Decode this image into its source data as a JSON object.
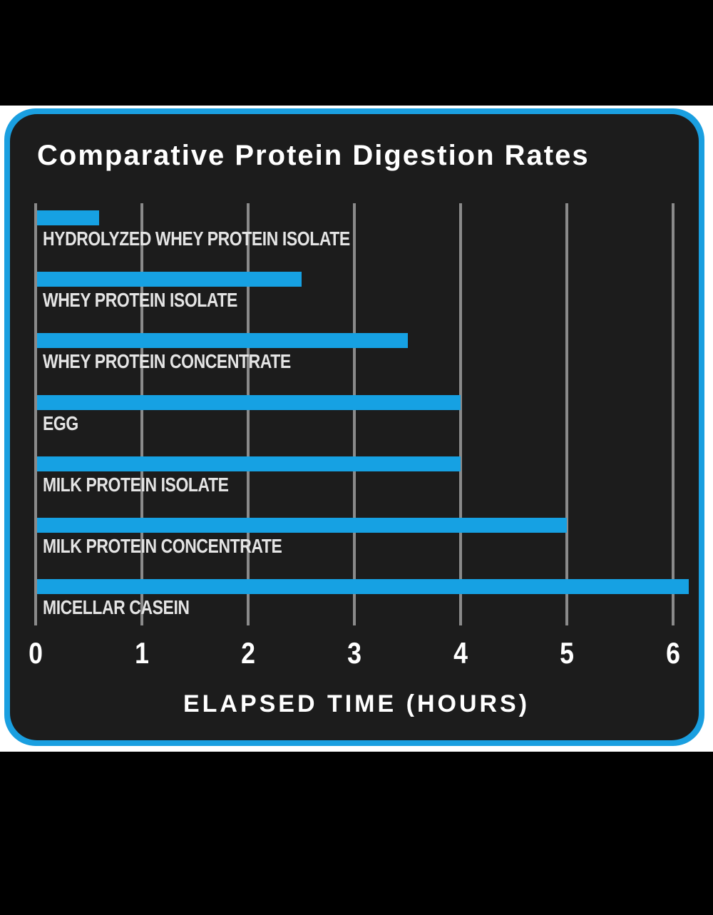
{
  "chart_data": {
    "type": "bar",
    "orientation": "horizontal",
    "title": "Comparative Protein Digestion Rates",
    "xlabel": "ELAPSED TIME (HOURS)",
    "ylabel": "",
    "categories": [
      "HYDROLYZED WHEY PROTEIN ISOLATE",
      "WHEY PROTEIN ISOLATE",
      "WHEY PROTEIN CONCENTRATE",
      "EGG",
      "MILK PROTEIN ISOLATE",
      "MILK PROTEIN CONCENTRATE",
      "MICELLAR CASEIN"
    ],
    "values": [
      0.6,
      2.5,
      3.5,
      4,
      4,
      5,
      6.15
    ],
    "xlim": [
      0,
      6
    ],
    "xticks": [
      "0",
      "1",
      "2",
      "3",
      "4",
      "5",
      "6"
    ],
    "grid": "vertical",
    "legend": "none",
    "colors": {
      "bar": "#16a1e3",
      "background": "#1c1c1c",
      "border": "#1a9fe0",
      "grid": "#8a8a8a",
      "text": "#ffffff"
    }
  }
}
